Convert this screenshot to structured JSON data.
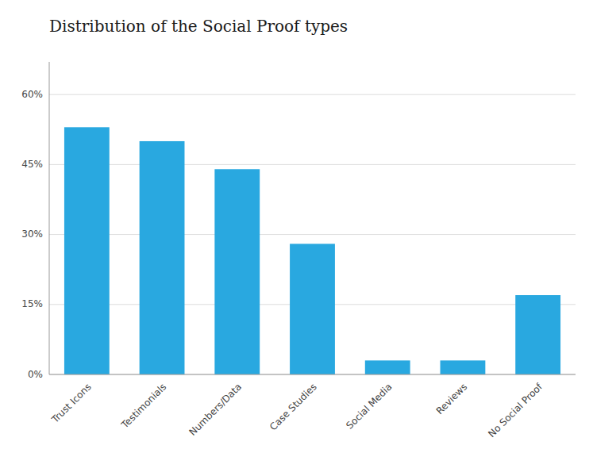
{
  "chart_data": {
    "type": "bar",
    "title": "Distribution of the Social Proof types",
    "categories": [
      "Trust Icons",
      "Testimonials",
      "Numbers/Data",
      "Case Studies",
      "Social Media",
      "Reviews",
      "No Social Proof"
    ],
    "values": [
      53,
      50,
      44,
      28,
      3,
      3,
      17
    ],
    "color": "#29a8e0",
    "ylim": [
      0,
      67
    ],
    "yticks": [
      {
        "value": 0,
        "label": "0%"
      },
      {
        "value": 15,
        "label": "15%"
      },
      {
        "value": 30,
        "label": "30%"
      },
      {
        "value": 45,
        "label": "45%"
      },
      {
        "value": 60,
        "label": "60%"
      }
    ],
    "grid": true
  }
}
